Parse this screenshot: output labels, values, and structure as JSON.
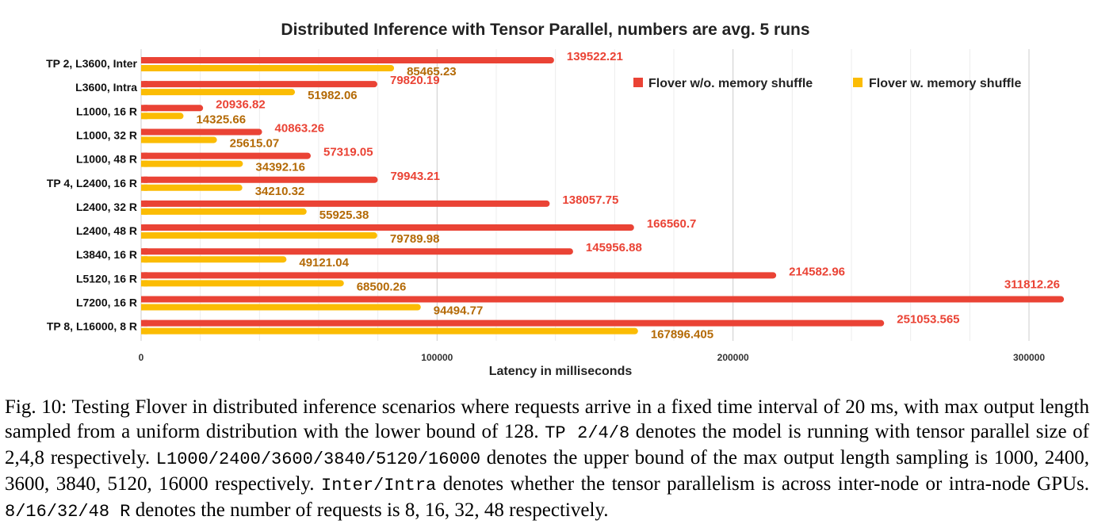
{
  "chart_data": {
    "type": "bar",
    "orientation": "horizontal",
    "title": "Distributed Inference with Tensor Parallel, numbers are avg. 5 runs",
    "xlabel": "Latency in milliseconds",
    "ylabel": "",
    "xlim": [
      0,
      315000
    ],
    "xticks": [
      0,
      100000,
      200000,
      300000
    ],
    "xtick_labels": [
      "0",
      "100000",
      "200000",
      "300000"
    ],
    "grid": "vertical",
    "legend_position": "top-right",
    "categories": [
      "TP 2, L3600, Inter",
      "L3600, Intra",
      "L1000, 16 R",
      "L1000, 32 R",
      "L1000, 48 R",
      "TP 4, L2400, 16 R",
      "L2400, 32 R",
      "L2400, 48 R",
      "L3840, 16 R",
      "L5120, 16 R",
      "L7200, 16 R",
      "TP 8, L16000, 8 R"
    ],
    "series": [
      {
        "name": "Flover w/o. memory shuffle",
        "color": "#ea4335",
        "values": [
          139522.21,
          79820.19,
          20936.82,
          40863.26,
          57319.05,
          79943.21,
          138057.75,
          166560.7,
          145956.88,
          214582.96,
          311812.26,
          251053.565
        ],
        "labels": [
          "139522.21",
          "79820.19",
          "20936.82",
          "40863.26",
          "57319.05",
          "79943.21",
          "138057.75",
          "166560.7",
          "145956.88",
          "214582.96",
          "311812.26",
          "251053.565"
        ]
      },
      {
        "name": "Flover w. memory shuffle",
        "color": "#fbbc04",
        "label_color": "#b46a06",
        "values": [
          85465.23,
          51982.06,
          14325.66,
          25615.07,
          34392.16,
          34210.32,
          55925.38,
          79789.98,
          49121.04,
          68500.26,
          94494.77,
          167896.405
        ],
        "labels": [
          "85465.23",
          "51982.06",
          "14325.66",
          "25615.07",
          "34392.16",
          "34210.32",
          "55925.38",
          "79789.98",
          "49121.04",
          "68500.26",
          "94494.77",
          "167896.405"
        ]
      }
    ]
  },
  "caption": {
    "p1": "Fig. 10: Testing Flover in distributed inference scenarios where requests arrive in a fixed time interval of 20 ms, with max output length sampled from a uniform distribution with the lower bound of 128. ",
    "m1": "TP 2/4/8",
    "p2": " denotes the model is running with tensor parallel size of 2,4,8 respectively. ",
    "m2": "L1000/2400/3600/3840/5120/16000",
    "p3": " denotes the upper bound of the max output length sampling is 1000, 2400, 3600, 3840, 5120, 16000 respectively. ",
    "m3": "Inter/Intra",
    "p4": " denotes whether the tensor parallelism is across inter-node or intra-node GPUs. ",
    "m4": "8/16/32/48 R",
    "p5": " denotes the number of requests is 8, 16, 32, 48 respectively."
  }
}
